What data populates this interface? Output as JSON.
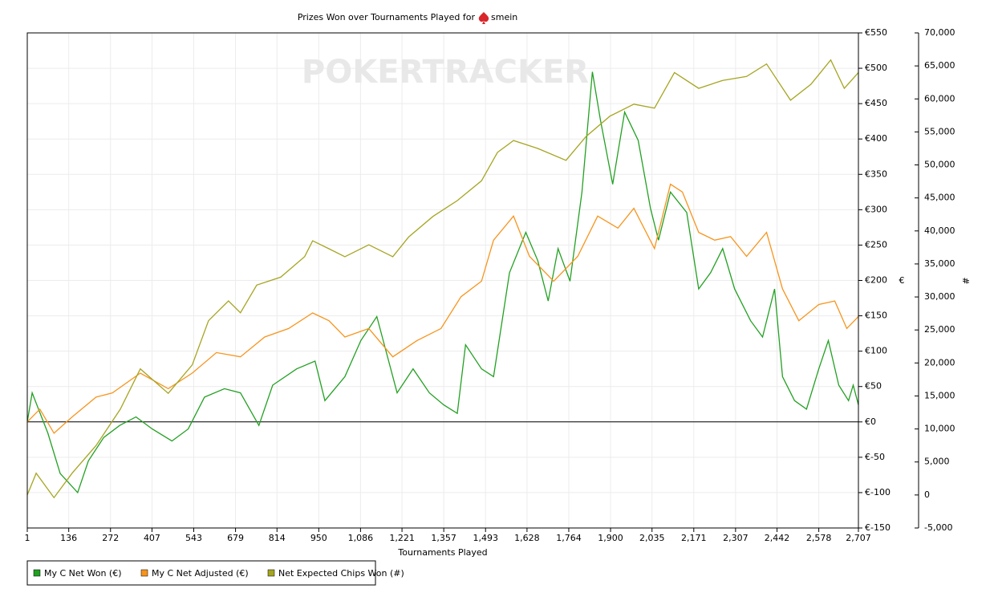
{
  "chart_data": {
    "type": "line",
    "title": "Prizes Won over Tournaments Played for",
    "player": "smein",
    "watermark": "POKERTRACKER",
    "x_label": "Tournaments Played",
    "y_label": "€",
    "y2_label": "#",
    "grid": true,
    "legend": "bottom-left",
    "xlim": [
      1,
      2707
    ],
    "xticks": [
      1,
      136,
      272,
      407,
      543,
      679,
      814,
      950,
      {
        "value": 1086,
        "label": "1,086"
      },
      {
        "value": 1221,
        "label": "1,221"
      },
      {
        "value": 1357,
        "label": "1,357"
      },
      {
        "value": 1493,
        "label": "1,493"
      },
      {
        "value": 1628,
        "label": "1,628"
      },
      {
        "value": 1764,
        "label": "1,764"
      },
      {
        "value": 1900,
        "label": "1,900"
      },
      {
        "value": 2035,
        "label": "2,035"
      },
      {
        "value": 2171,
        "label": "2,171"
      },
      {
        "value": 2307,
        "label": "2,307"
      },
      {
        "value": 2442,
        "label": "2,442"
      },
      {
        "value": 2578,
        "label": "2,578"
      },
      {
        "value": 2707,
        "label": "2,707"
      }
    ],
    "ylim": [
      -150,
      550
    ],
    "yticks": [
      {
        "value": -150,
        "label": "€-150"
      },
      {
        "value": -100,
        "label": "€-100"
      },
      {
        "value": -50,
        "label": "€-50"
      },
      {
        "value": 0,
        "label": "€0"
      },
      {
        "value": 50,
        "label": "€50"
      },
      {
        "value": 100,
        "label": "€100"
      },
      {
        "value": 150,
        "label": "€150"
      },
      {
        "value": 200,
        "label": "€200"
      },
      {
        "value": 250,
        "label": "€250"
      },
      {
        "value": 300,
        "label": "€300"
      },
      {
        "value": 350,
        "label": "€350"
      },
      {
        "value": 400,
        "label": "€400"
      },
      {
        "value": 450,
        "label": "€450"
      },
      {
        "value": 500,
        "label": "€500"
      },
      {
        "value": 550,
        "label": "€550"
      }
    ],
    "y2lim": [
      -5000,
      70000
    ],
    "y2ticks": [
      {
        "value": -5000,
        "label": "-5,000"
      },
      0,
      {
        "value": 5000,
        "label": "5,000"
      },
      {
        "value": 10000,
        "label": "10,000"
      },
      {
        "value": 15000,
        "label": "15,000"
      },
      {
        "value": 20000,
        "label": "20,000"
      },
      {
        "value": 25000,
        "label": "25,000"
      },
      {
        "value": 30000,
        "label": "30,000"
      },
      {
        "value": 35000,
        "label": "35,000"
      },
      {
        "value": 40000,
        "label": "40,000"
      },
      {
        "value": 45000,
        "label": "45,000"
      },
      {
        "value": 50000,
        "label": "50,000"
      },
      {
        "value": 55000,
        "label": "55,000"
      },
      {
        "value": 60000,
        "label": "60,000"
      },
      {
        "value": 65000,
        "label": "65,000"
      },
      {
        "value": 70000,
        "label": "70,000"
      }
    ],
    "series": [
      {
        "name": "My C Net Won (€)",
        "color": "#22a022",
        "x": [
          1,
          17,
          68,
          108,
          165,
          200,
          250,
          302,
          355,
          408,
          472,
          525,
          578,
          643,
          695,
          755,
          800,
          878,
          938,
          970,
          1035,
          1087,
          1139,
          1205,
          1257,
          1310,
          1357,
          1401,
          1428,
          1480,
          1519,
          1571,
          1624,
          1663,
          1697,
          1729,
          1768,
          1807,
          1841,
          1867,
          1907,
          1946,
          1990,
          2030,
          2056,
          2095,
          2148,
          2187,
          2226,
          2265,
          2304,
          2356,
          2395,
          2434,
          2460,
          2499,
          2538,
          2578,
          2609,
          2643,
          2675,
          2690,
          2707
        ],
        "values": [
          0,
          41,
          -16,
          -73,
          -100,
          -55,
          -22,
          -5,
          7,
          -10,
          -27,
          -10,
          35,
          47,
          41,
          -5,
          52,
          75,
          86,
          30,
          64,
          115,
          149,
          41,
          75,
          41,
          24,
          12,
          109,
          75,
          64,
          211,
          268,
          228,
          171,
          245,
          199,
          325,
          495,
          427,
          336,
          438,
          398,
          302,
          257,
          325,
          296,
          188,
          211,
          245,
          188,
          143,
          120,
          188,
          64,
          30,
          18,
          75,
          115,
          52,
          30,
          52,
          24
        ]
      },
      {
        "name": "My C Net Adjusted (€)",
        "color": "#f7941d",
        "x": [
          1,
          42,
          88,
          147,
          225,
          278,
          369,
          460,
          538,
          617,
          695,
          774,
          852,
          930,
          983,
          1035,
          1113,
          1191,
          1270,
          1348,
          1413,
          1480,
          1519,
          1584,
          1636,
          1715,
          1793,
          1858,
          1924,
          1976,
          2043,
          2095,
          2134,
          2187,
          2239,
          2291,
          2343,
          2408,
          2460,
          2513,
          2578,
          2630,
          2669,
          2707
        ],
        "values": [
          0,
          18,
          -16,
          7,
          35,
          41,
          69,
          47,
          69,
          98,
          92,
          120,
          132,
          154,
          143,
          120,
          132,
          92,
          115,
          132,
          177,
          199,
          257,
          291,
          234,
          199,
          234,
          291,
          274,
          302,
          245,
          336,
          325,
          268,
          257,
          262,
          234,
          268,
          188,
          143,
          166,
          171,
          132,
          149
        ]
      },
      {
        "name": "Net Expected Chips Won (#)",
        "color": "#a5a522",
        "axis": "y2",
        "x": [
          1,
          30,
          88,
          147,
          225,
          304,
          369,
          460,
          538,
          591,
          656,
          695,
          748,
          826,
          904,
          930,
          983,
          1035,
          1113,
          1191,
          1243,
          1322,
          1401,
          1480,
          1532,
          1584,
          1663,
          1755,
          1820,
          1898,
          1976,
          2043,
          2108,
          2187,
          2265,
          2343,
          2408,
          2486,
          2552,
          2617,
          2661,
          2707
        ],
        "values": [
          0,
          3300,
          -400,
          3300,
          7500,
          13000,
          19100,
          15400,
          19700,
          26400,
          29400,
          27600,
          31800,
          33000,
          36100,
          38500,
          37300,
          36100,
          37900,
          36100,
          39100,
          42200,
          44600,
          47600,
          51900,
          53700,
          52500,
          50700,
          54300,
          57400,
          59200,
          58600,
          64000,
          61600,
          62800,
          63400,
          65300,
          59800,
          62200,
          65900,
          61600,
          64000
        ]
      }
    ]
  }
}
